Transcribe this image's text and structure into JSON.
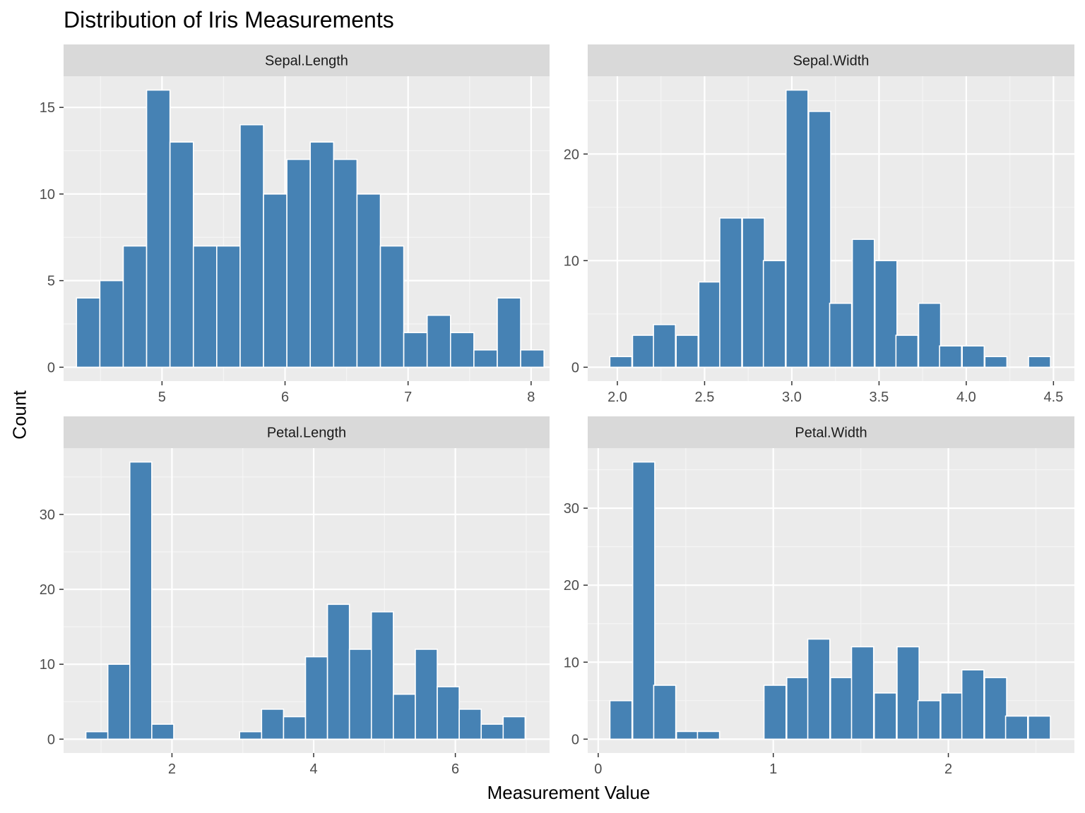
{
  "chart_data": {
    "type": "bar",
    "title": "Distribution of Iris Measurements",
    "xlabel": "Measurement Value",
    "ylabel": "Count",
    "bar_color": "#4682B4",
    "bar_outline": "#ffffff",
    "panel_background": "#EBEBEB",
    "strip_background": "#D9D9D9",
    "grid": true,
    "facets": [
      {
        "name": "Sepal.Length",
        "xlim": [
          4.2,
          8.15
        ],
        "ylim": [
          -0.8,
          16.8
        ],
        "x_ticks": [
          5,
          6,
          7,
          8
        ],
        "x_tick_labels": [
          "5",
          "6",
          "7",
          "8"
        ],
        "y_ticks": [
          0,
          5,
          10,
          15
        ],
        "y_tick_labels": [
          "0",
          "5",
          "10",
          "15"
        ],
        "bin_width": 0.19,
        "bins": [
          {
            "x": 4.4,
            "count": 4
          },
          {
            "x": 4.59,
            "count": 5
          },
          {
            "x": 4.78,
            "count": 7
          },
          {
            "x": 4.97,
            "count": 16
          },
          {
            "x": 5.16,
            "count": 13
          },
          {
            "x": 5.35,
            "count": 7
          },
          {
            "x": 5.54,
            "count": 7
          },
          {
            "x": 5.73,
            "count": 14
          },
          {
            "x": 5.92,
            "count": 10
          },
          {
            "x": 6.11,
            "count": 12
          },
          {
            "x": 6.3,
            "count": 13
          },
          {
            "x": 6.49,
            "count": 12
          },
          {
            "x": 6.68,
            "count": 10
          },
          {
            "x": 6.87,
            "count": 7
          },
          {
            "x": 7.06,
            "count": 2
          },
          {
            "x": 7.25,
            "count": 3
          },
          {
            "x": 7.44,
            "count": 2
          },
          {
            "x": 7.63,
            "count": 1
          },
          {
            "x": 7.82,
            "count": 4
          },
          {
            "x": 8.01,
            "count": 1
          }
        ]
      },
      {
        "name": "Sepal.Width",
        "xlim": [
          1.83,
          4.62
        ],
        "ylim": [
          -1.3,
          27.3
        ],
        "x_ticks": [
          2.0,
          2.5,
          3.0,
          3.5,
          4.0,
          4.5
        ],
        "x_tick_labels": [
          "2.0",
          "2.5",
          "3.0",
          "3.5",
          "4.0",
          "4.5"
        ],
        "y_ticks": [
          0,
          10,
          20
        ],
        "y_tick_labels": [
          "0",
          "10",
          "20"
        ],
        "bin_width": 0.126,
        "bins": [
          {
            "x": 2.02,
            "count": 1
          },
          {
            "x": 2.15,
            "count": 3
          },
          {
            "x": 2.27,
            "count": 4
          },
          {
            "x": 2.4,
            "count": 3
          },
          {
            "x": 2.53,
            "count": 8
          },
          {
            "x": 2.65,
            "count": 14
          },
          {
            "x": 2.78,
            "count": 14
          },
          {
            "x": 2.9,
            "count": 10
          },
          {
            "x": 3.03,
            "count": 26
          },
          {
            "x": 3.16,
            "count": 24
          },
          {
            "x": 3.28,
            "count": 6
          },
          {
            "x": 3.41,
            "count": 12
          },
          {
            "x": 3.54,
            "count": 10
          },
          {
            "x": 3.66,
            "count": 3
          },
          {
            "x": 3.79,
            "count": 6
          },
          {
            "x": 3.91,
            "count": 2
          },
          {
            "x": 4.04,
            "count": 2
          },
          {
            "x": 4.17,
            "count": 1
          },
          {
            "x": 4.29,
            "count": 0
          },
          {
            "x": 4.42,
            "count": 1
          }
        ]
      },
      {
        "name": "Petal.Length",
        "xlim": [
          0.47,
          7.33
        ],
        "ylim": [
          -1.85,
          38.85
        ],
        "x_ticks": [
          2,
          4,
          6
        ],
        "x_tick_labels": [
          "2",
          "4",
          "6"
        ],
        "y_ticks": [
          0,
          10,
          20,
          30
        ],
        "y_tick_labels": [
          "0",
          "10",
          "20",
          "30"
        ],
        "bin_width": 0.31,
        "bins": [
          {
            "x": 0.94,
            "count": 1
          },
          {
            "x": 1.25,
            "count": 10
          },
          {
            "x": 1.56,
            "count": 37
          },
          {
            "x": 1.87,
            "count": 2
          },
          {
            "x": 2.18,
            "count": 0
          },
          {
            "x": 2.49,
            "count": 0
          },
          {
            "x": 2.8,
            "count": 0
          },
          {
            "x": 3.11,
            "count": 1
          },
          {
            "x": 3.42,
            "count": 4
          },
          {
            "x": 3.73,
            "count": 3
          },
          {
            "x": 4.04,
            "count": 11
          },
          {
            "x": 4.35,
            "count": 18
          },
          {
            "x": 4.66,
            "count": 12
          },
          {
            "x": 4.97,
            "count": 17
          },
          {
            "x": 5.28,
            "count": 6
          },
          {
            "x": 5.59,
            "count": 12
          },
          {
            "x": 5.9,
            "count": 7
          },
          {
            "x": 6.21,
            "count": 4
          },
          {
            "x": 6.52,
            "count": 2
          },
          {
            "x": 6.83,
            "count": 3
          }
        ]
      },
      {
        "name": "Petal.Width",
        "xlim": [
          -0.06,
          2.72
        ],
        "ylim": [
          -1.8,
          37.8
        ],
        "x_ticks": [
          0,
          1,
          2
        ],
        "x_tick_labels": [
          "0",
          "1",
          "2"
        ],
        "y_ticks": [
          0,
          10,
          20,
          30
        ],
        "y_tick_labels": [
          "0",
          "10",
          "20",
          "30"
        ],
        "bin_width": 0.126,
        "bins": [
          {
            "x": 0.13,
            "count": 5
          },
          {
            "x": 0.26,
            "count": 36
          },
          {
            "x": 0.38,
            "count": 7
          },
          {
            "x": 0.51,
            "count": 1
          },
          {
            "x": 0.63,
            "count": 1
          },
          {
            "x": 0.76,
            "count": 0
          },
          {
            "x": 0.88,
            "count": 0
          },
          {
            "x": 1.01,
            "count": 7
          },
          {
            "x": 1.14,
            "count": 8
          },
          {
            "x": 1.26,
            "count": 13
          },
          {
            "x": 1.39,
            "count": 8
          },
          {
            "x": 1.51,
            "count": 12
          },
          {
            "x": 1.64,
            "count": 6
          },
          {
            "x": 1.77,
            "count": 12
          },
          {
            "x": 1.89,
            "count": 5
          },
          {
            "x": 2.02,
            "count": 6
          },
          {
            "x": 2.14,
            "count": 9
          },
          {
            "x": 2.27,
            "count": 8
          },
          {
            "x": 2.39,
            "count": 3
          },
          {
            "x": 2.52,
            "count": 3
          }
        ]
      }
    ]
  }
}
